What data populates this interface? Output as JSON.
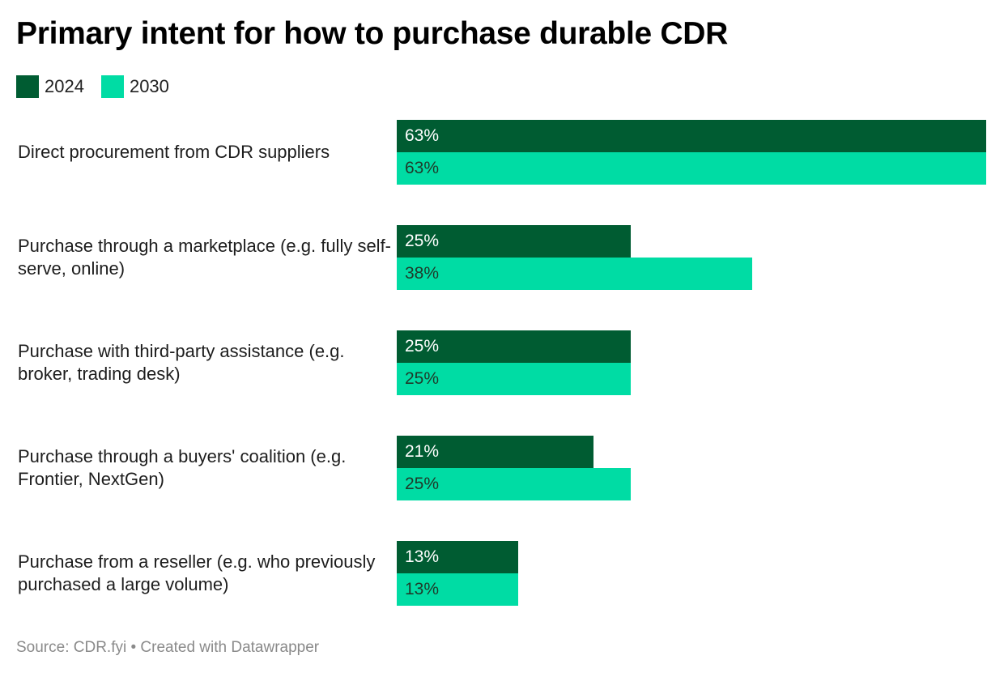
{
  "chart_data": {
    "type": "bar",
    "orientation": "horizontal",
    "title": "Primary intent for how to purchase durable CDR",
    "categories": [
      "Direct procurement from CDR suppliers",
      "Purchase through a marketplace (e.g. fully self-serve, online)",
      "Purchase with third-party assistance (e.g. broker, trading desk)",
      "Purchase through a buyers' coalition (e.g. Frontier, NextGen)",
      "Purchase from a reseller (e.g. who previously purchased a large volume)"
    ],
    "series": [
      {
        "name": "2024",
        "color": "#005c32",
        "values": [
          63,
          25,
          25,
          21,
          13
        ]
      },
      {
        "name": "2030",
        "color": "#00dca4",
        "values": [
          63,
          38,
          25,
          25,
          13
        ]
      }
    ],
    "value_suffix": "%",
    "xlim": [
      0,
      63
    ],
    "xlabel": "",
    "ylabel": "",
    "grid": false,
    "legend_position": "top-left"
  },
  "source": "Source: CDR.fyi • Created with Datawrapper"
}
